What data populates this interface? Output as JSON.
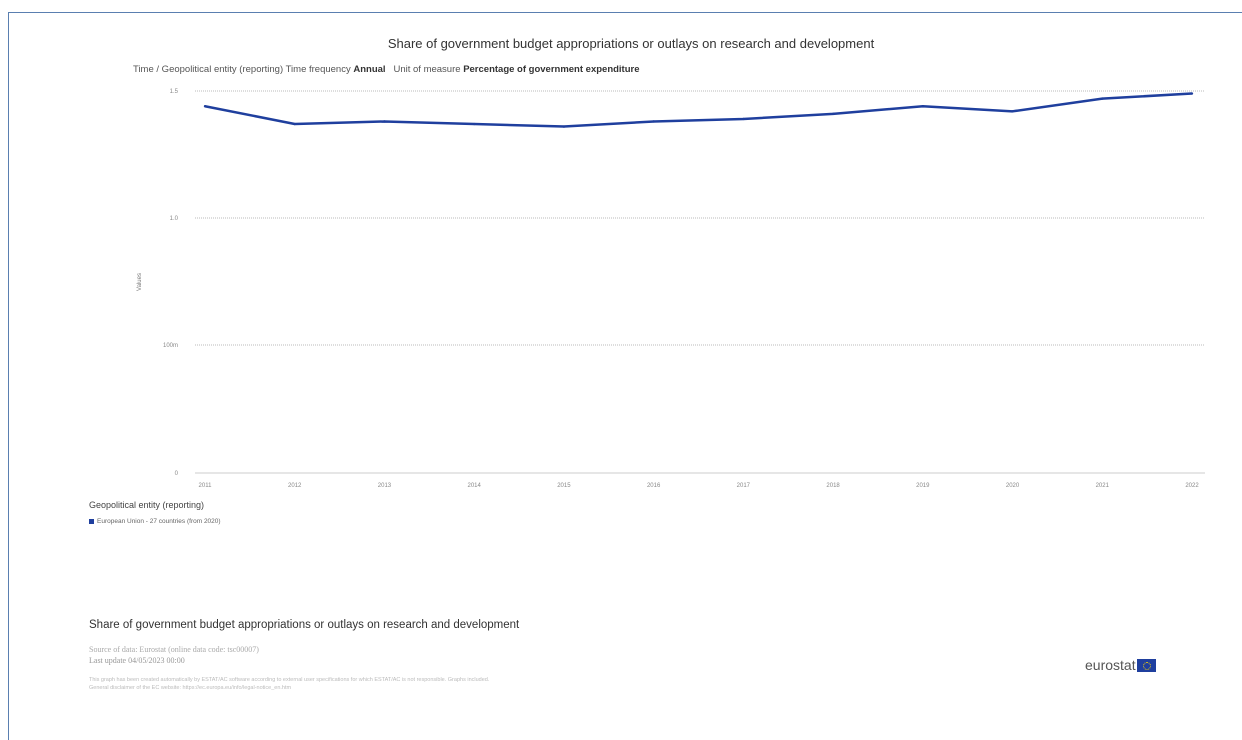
{
  "chart_data": {
    "type": "line",
    "title": "Share of government budget appropriations or outlays on research and development",
    "subtitle_prefix": "Time / Geopolitical entity (reporting)  Time frequency",
    "subtitle_freq": "Annual",
    "subtitle_unit_label": "Unit of measure",
    "subtitle_unit": "Percentage of government expenditure",
    "ylabel": "Values",
    "xlabel": "",
    "y_tick_labels": [
      "0",
      "100m",
      "1.0",
      "1.5"
    ],
    "categories": [
      "2011",
      "2012",
      "2013",
      "2014",
      "2015",
      "2016",
      "2017",
      "2018",
      "2019",
      "2020",
      "2021",
      "2022"
    ],
    "series": [
      {
        "name": "European Union - 27 countries (from 2020)",
        "color": "#1f3f9e",
        "values": [
          1.44,
          1.37,
          1.38,
          1.37,
          1.36,
          1.38,
          1.39,
          1.41,
          1.44,
          1.42,
          1.47,
          1.49
        ]
      }
    ],
    "grid": true,
    "legend_position": "bottom-left"
  },
  "legend": {
    "title": "Geopolitical entity (reporting)"
  },
  "footer": {
    "title": "Share of government budget appropriations or outlays on research and development",
    "source": "Source of data: Eurostat (online data code: tsc00007)",
    "last_update": "Last update 04/05/2023 00:00",
    "disclaimer_line1": "This graph has been created automatically by ESTAT/AC software according to external user specifications for which ESTAT/AC is not responsible. Graphs included.",
    "disclaimer_line2": "General disclaimer of the EC website: https://ec.europa.eu/info/legal-notice_en.htm"
  },
  "logo": {
    "text": "eurostat"
  }
}
